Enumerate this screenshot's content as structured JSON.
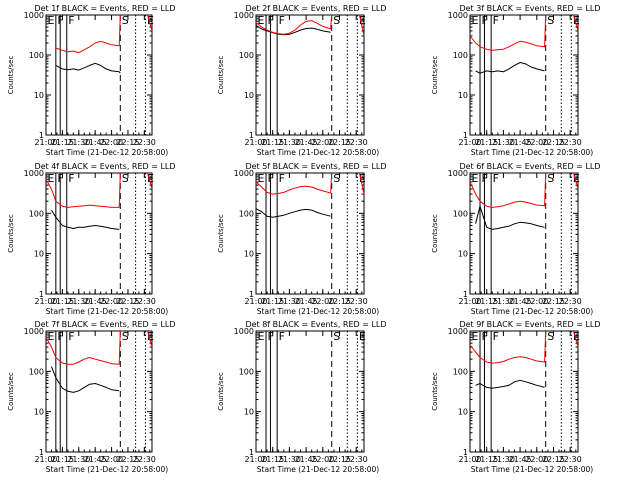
{
  "figure": {
    "background": "#ffffff",
    "axis_color": "#000000",
    "events_color": "#000000",
    "lld_color": "#ff0000",
    "ylabel": "Counts/sec",
    "xlabel": "Start Time (21-Dec-12 20:58:00)",
    "x_range": [
      "21:00",
      "22:37"
    ],
    "x_ticks": [
      "21:00",
      "21:15",
      "21:30",
      "21:45",
      "22:00",
      "22:15",
      "22:30"
    ],
    "y_scale": "log",
    "y_range": [
      1,
      1000
    ],
    "y_ticks": [
      "1",
      "10",
      "100",
      "1000"
    ],
    "markers": [
      {
        "time": "21:00",
        "letter": "E",
        "style": "solid"
      },
      {
        "time": "21:09",
        "letter": "F",
        "style": "solid"
      },
      {
        "time": "21:13",
        "letter": "",
        "style": "solid"
      },
      {
        "time": "21:19",
        "letter": "F",
        "style": "solid"
      },
      {
        "time": "22:08",
        "letter": "S",
        "style": "dashed"
      },
      {
        "time": "22:22",
        "letter": "",
        "style": "dotted"
      },
      {
        "time": "22:31",
        "letter": "E",
        "style": "dotted"
      }
    ]
  },
  "chart_data": [
    {
      "type": "line",
      "title": "Det 1f BLACK = Events, RED = LLD",
      "series": [
        {
          "name": "Events",
          "color": "#000000",
          "x": [
            "21:09",
            "21:15",
            "21:20",
            "21:25",
            "21:30",
            "21:35",
            "21:40",
            "21:45",
            "21:50",
            "21:55",
            "22:00",
            "22:07",
            "22:08",
            "22:15",
            "22:30",
            "22:37"
          ],
          "y": [
            55,
            45,
            43,
            45,
            42,
            48,
            55,
            62,
            55,
            45,
            40,
            38,
            35,
            null,
            null,
            null
          ]
        },
        {
          "name": "LLD",
          "color": "#ff0000",
          "x": [
            "21:09",
            "21:15",
            "21:20",
            "21:25",
            "21:30",
            "21:35",
            "21:40",
            "21:45",
            "21:50",
            "21:55",
            "22:00",
            "22:07",
            "22:08",
            "22:15",
            "22:30",
            "22:33",
            "22:37"
          ],
          "y": [
            150,
            130,
            120,
            125,
            115,
            135,
            160,
            200,
            220,
            200,
            180,
            170,
            1000,
            null,
            null,
            1000,
            400
          ]
        }
      ]
    },
    {
      "type": "line",
      "title": "Det 2f BLACK = Events, RED = LLD",
      "series": [
        {
          "name": "Events",
          "color": "#000000",
          "x": [
            "21:00",
            "21:05",
            "21:10",
            "21:15",
            "21:20",
            "21:25",
            "21:30",
            "21:35",
            "21:40",
            "21:45",
            "21:50",
            "21:55",
            "22:00",
            "22:07",
            "22:08",
            "22:15",
            "22:30",
            "22:37"
          ],
          "y": [
            550,
            450,
            400,
            360,
            330,
            320,
            330,
            370,
            420,
            460,
            470,
            440,
            400,
            370,
            null,
            null,
            null,
            null
          ]
        },
        {
          "name": "LLD",
          "color": "#ff0000",
          "x": [
            "21:00",
            "21:05",
            "21:10",
            "21:15",
            "21:20",
            "21:25",
            "21:30",
            "21:35",
            "21:40",
            "21:45",
            "21:50",
            "21:55",
            "22:00",
            "22:07",
            "22:08",
            "22:15",
            "22:30",
            "22:33",
            "22:37"
          ],
          "y": [
            650,
            500,
            420,
            370,
            340,
            330,
            350,
            420,
            560,
            700,
            720,
            620,
            520,
            450,
            1000,
            null,
            null,
            1000,
            300
          ]
        }
      ]
    },
    {
      "type": "line",
      "title": "Det 3f BLACK = Events, RED = LLD",
      "series": [
        {
          "name": "Events",
          "color": "#000000",
          "x": [
            "21:05",
            "21:09",
            "21:15",
            "21:20",
            "21:25",
            "21:30",
            "21:35",
            "21:40",
            "21:45",
            "21:50",
            "21:55",
            "22:00",
            "22:07",
            "22:08",
            "22:15",
            "22:30",
            "22:37"
          ],
          "y": [
            40,
            35,
            40,
            38,
            40,
            38,
            45,
            55,
            65,
            60,
            50,
            45,
            40,
            null,
            null,
            null,
            null
          ]
        },
        {
          "name": "LLD",
          "color": "#ff0000",
          "x": [
            "21:00",
            "21:05",
            "21:09",
            "21:15",
            "21:20",
            "21:25",
            "21:30",
            "21:35",
            "21:40",
            "21:45",
            "21:50",
            "21:55",
            "22:00",
            "22:07",
            "22:08",
            "22:15",
            "22:30",
            "22:33",
            "22:37"
          ],
          "y": [
            300,
            200,
            160,
            140,
            130,
            135,
            140,
            160,
            190,
            220,
            210,
            190,
            170,
            160,
            1000,
            null,
            null,
            1000,
            400
          ]
        }
      ]
    },
    {
      "type": "line",
      "title": "Det 4f BLACK = Events, RED = LLD",
      "series": [
        {
          "name": "Events",
          "color": "#000000",
          "x": [
            "21:05",
            "21:09",
            "21:15",
            "21:20",
            "21:25",
            "21:30",
            "21:35",
            "21:40",
            "21:45",
            "21:50",
            "21:55",
            "22:00",
            "22:07",
            "22:08",
            "22:15",
            "22:30",
            "22:37"
          ],
          "y": [
            120,
            80,
            50,
            45,
            42,
            45,
            45,
            48,
            50,
            48,
            45,
            42,
            40,
            null,
            null,
            null,
            null
          ]
        },
        {
          "name": "LLD",
          "color": "#ff0000",
          "x": [
            "21:00",
            "21:05",
            "21:09",
            "21:15",
            "21:20",
            "21:25",
            "21:30",
            "21:35",
            "21:40",
            "21:45",
            "21:50",
            "21:55",
            "22:00",
            "22:07",
            "22:08",
            "22:15",
            "22:30",
            "22:33",
            "22:37"
          ],
          "y": [
            700,
            400,
            200,
            150,
            140,
            145,
            150,
            155,
            160,
            155,
            150,
            145,
            140,
            140,
            1000,
            null,
            null,
            1000,
            400
          ]
        }
      ]
    },
    {
      "type": "line",
      "title": "Det 5f BLACK = Events, RED = LLD",
      "series": [
        {
          "name": "Events",
          "color": "#000000",
          "x": [
            "21:00",
            "21:05",
            "21:10",
            "21:15",
            "21:20",
            "21:25",
            "21:30",
            "21:35",
            "21:40",
            "21:45",
            "21:50",
            "21:55",
            "22:00",
            "22:07",
            "22:08",
            "22:15",
            "22:30",
            "22:37"
          ],
          "y": [
            130,
            110,
            85,
            80,
            85,
            90,
            100,
            110,
            120,
            125,
            120,
            105,
            95,
            85,
            null,
            null,
            null,
            null
          ]
        },
        {
          "name": "LLD",
          "color": "#ff0000",
          "x": [
            "21:00",
            "21:05",
            "21:10",
            "21:15",
            "21:20",
            "21:25",
            "21:30",
            "21:35",
            "21:40",
            "21:45",
            "21:50",
            "21:55",
            "22:00",
            "22:07",
            "22:08",
            "22:15",
            "22:30",
            "22:33",
            "22:37"
          ],
          "y": [
            600,
            450,
            330,
            300,
            310,
            330,
            380,
            420,
            460,
            470,
            450,
            400,
            360,
            320,
            1000,
            null,
            null,
            1000,
            300
          ]
        }
      ]
    },
    {
      "type": "line",
      "title": "Det 6f BLACK = Events, RED = LLD",
      "series": [
        {
          "name": "Events",
          "color": "#000000",
          "x": [
            "21:05",
            "21:09",
            "21:15",
            "21:20",
            "21:25",
            "21:30",
            "21:35",
            "21:40",
            "21:45",
            "21:50",
            "21:55",
            "22:00",
            "22:07",
            "22:08",
            "22:15",
            "22:30",
            "22:37"
          ],
          "y": [
            55,
            150,
            45,
            40,
            42,
            45,
            48,
            55,
            60,
            58,
            55,
            50,
            45,
            null,
            null,
            null,
            null
          ]
        },
        {
          "name": "LLD",
          "color": "#ff0000",
          "x": [
            "21:00",
            "21:05",
            "21:09",
            "21:15",
            "21:20",
            "21:25",
            "21:30",
            "21:35",
            "21:40",
            "21:45",
            "21:50",
            "21:55",
            "22:00",
            "22:07",
            "22:08",
            "22:15",
            "22:30",
            "22:33",
            "22:37"
          ],
          "y": [
            600,
            300,
            200,
            150,
            140,
            145,
            155,
            170,
            190,
            200,
            190,
            175,
            160,
            155,
            1000,
            null,
            null,
            1000,
            400
          ]
        }
      ]
    },
    {
      "type": "line",
      "title": "Det 7f BLACK = Events, RED = LLD",
      "series": [
        {
          "name": "Events",
          "color": "#000000",
          "x": [
            "21:05",
            "21:09",
            "21:15",
            "21:20",
            "21:25",
            "21:30",
            "21:35",
            "21:40",
            "21:45",
            "21:50",
            "21:55",
            "22:00",
            "22:07",
            "22:08",
            "22:15",
            "22:30",
            "22:37"
          ],
          "y": [
            130,
            70,
            38,
            32,
            30,
            33,
            40,
            48,
            50,
            45,
            40,
            35,
            33,
            null,
            null,
            null,
            null
          ]
        },
        {
          "name": "LLD",
          "color": "#ff0000",
          "x": [
            "21:00",
            "21:05",
            "21:09",
            "21:15",
            "21:20",
            "21:25",
            "21:30",
            "21:35",
            "21:40",
            "21:45",
            "21:50",
            "21:55",
            "22:00",
            "22:07",
            "22:08",
            "22:15",
            "22:30",
            "22:33",
            "22:37"
          ],
          "y": [
            700,
            400,
            220,
            160,
            150,
            150,
            170,
            200,
            220,
            200,
            185,
            170,
            155,
            150,
            1000,
            null,
            null,
            1000,
            400
          ]
        }
      ]
    },
    {
      "type": "line",
      "title": "Det 8f BLACK = Events, RED = LLD",
      "series": []
    },
    {
      "type": "line",
      "title": "Det 9f BLACK = Events, RED = LLD",
      "series": [
        {
          "name": "Events",
          "color": "#000000",
          "x": [
            "21:05",
            "21:09",
            "21:15",
            "21:20",
            "21:25",
            "21:30",
            "21:35",
            "21:40",
            "21:45",
            "21:50",
            "21:55",
            "22:00",
            "22:07",
            "22:08",
            "22:15",
            "22:30",
            "22:37"
          ],
          "y": [
            45,
            50,
            40,
            38,
            40,
            42,
            45,
            55,
            60,
            55,
            50,
            45,
            40,
            null,
            null,
            null,
            null
          ]
        },
        {
          "name": "LLD",
          "color": "#ff0000",
          "x": [
            "21:00",
            "21:05",
            "21:09",
            "21:15",
            "21:20",
            "21:25",
            "21:30",
            "21:35",
            "21:40",
            "21:45",
            "21:50",
            "21:55",
            "22:00",
            "22:07",
            "22:08",
            "22:15",
            "22:30",
            "22:33",
            "22:37"
          ],
          "y": [
            450,
            300,
            220,
            170,
            160,
            165,
            175,
            200,
            220,
            230,
            220,
            200,
            180,
            170,
            1000,
            null,
            null,
            1000,
            400
          ]
        }
      ]
    }
  ]
}
